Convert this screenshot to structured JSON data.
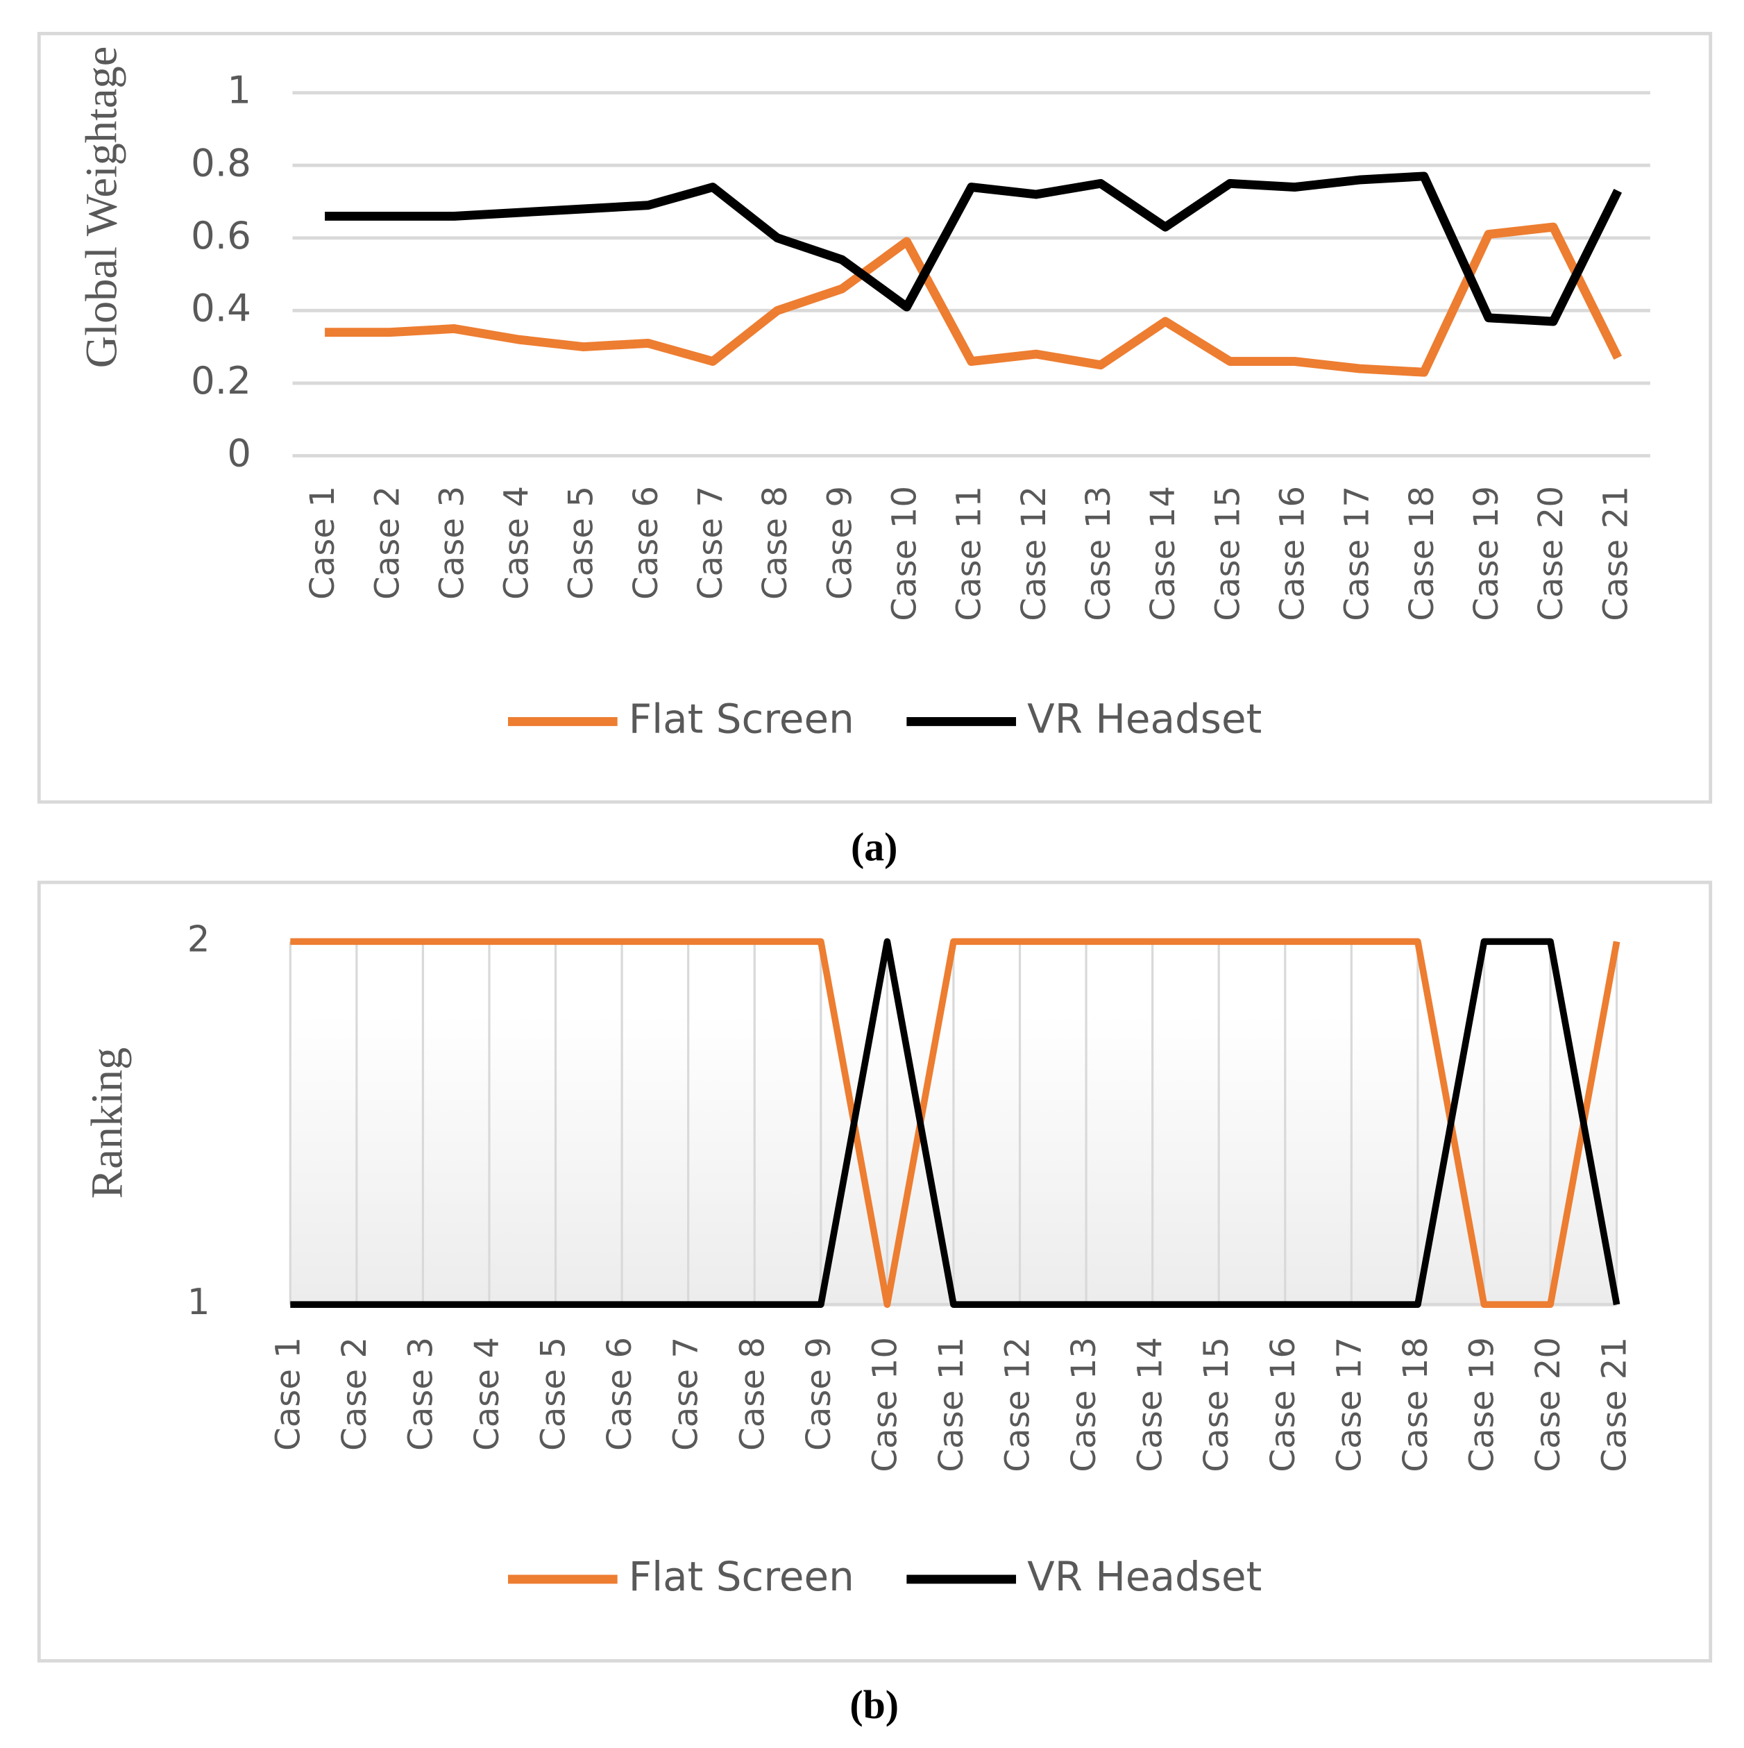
{
  "chart_data": [
    {
      "type": "line",
      "caption": "(a)",
      "y_label": "Global Weightage",
      "categories": [
        "Case 1",
        "Case 2",
        "Case 3",
        "Case 4",
        "Case 5",
        "Case 6",
        "Case 7",
        "Case 8",
        "Case 9",
        "Case 10",
        "Case 11",
        "Case 12",
        "Case 13",
        "Case 14",
        "Case 15",
        "Case 16",
        "Case 17",
        "Case 18",
        "Case 19",
        "Case 20",
        "Case 21"
      ],
      "series": [
        {
          "name": "Flat Screen",
          "color": "#ed7d31",
          "values": [
            0.34,
            0.34,
            0.35,
            0.32,
            0.3,
            0.31,
            0.26,
            0.4,
            0.46,
            0.59,
            0.26,
            0.28,
            0.25,
            0.37,
            0.26,
            0.26,
            0.24,
            0.23,
            0.61,
            0.63,
            0.27
          ]
        },
        {
          "name": "VR Headset",
          "color": "#000000",
          "values": [
            0.66,
            0.66,
            0.66,
            0.67,
            0.68,
            0.69,
            0.74,
            0.6,
            0.54,
            0.41,
            0.74,
            0.72,
            0.75,
            0.63,
            0.75,
            0.74,
            0.76,
            0.77,
            0.38,
            0.37,
            0.73
          ]
        }
      ],
      "ylim": [
        0,
        1
      ],
      "yticks": [
        0,
        0.2,
        0.4,
        0.6,
        0.8,
        1
      ],
      "grid": true,
      "legend": "bottom"
    },
    {
      "type": "line",
      "caption": "(b)",
      "y_label": "Ranking",
      "categories": [
        "Case 1",
        "Case 2",
        "Case 3",
        "Case 4",
        "Case 5",
        "Case 6",
        "Case 7",
        "Case 8",
        "Case 9",
        "Case 10",
        "Case 11",
        "Case 12",
        "Case 13",
        "Case 14",
        "Case 15",
        "Case 16",
        "Case 17",
        "Case 18",
        "Case 19",
        "Case 20",
        "Case 21"
      ],
      "series": [
        {
          "name": "Flat Screen",
          "color": "#ed7d31",
          "values": [
            2,
            2,
            2,
            2,
            2,
            2,
            2,
            2,
            2,
            1,
            2,
            2,
            2,
            2,
            2,
            2,
            2,
            2,
            1,
            1,
            2
          ]
        },
        {
          "name": "VR Headset",
          "color": "#000000",
          "values": [
            1,
            1,
            1,
            1,
            1,
            1,
            1,
            1,
            1,
            2,
            1,
            1,
            1,
            1,
            1,
            1,
            1,
            1,
            2,
            2,
            1
          ]
        }
      ],
      "ylim": [
        1,
        2
      ],
      "yticks": [
        1,
        2
      ],
      "xgrid": true,
      "legend": "bottom"
    }
  ]
}
